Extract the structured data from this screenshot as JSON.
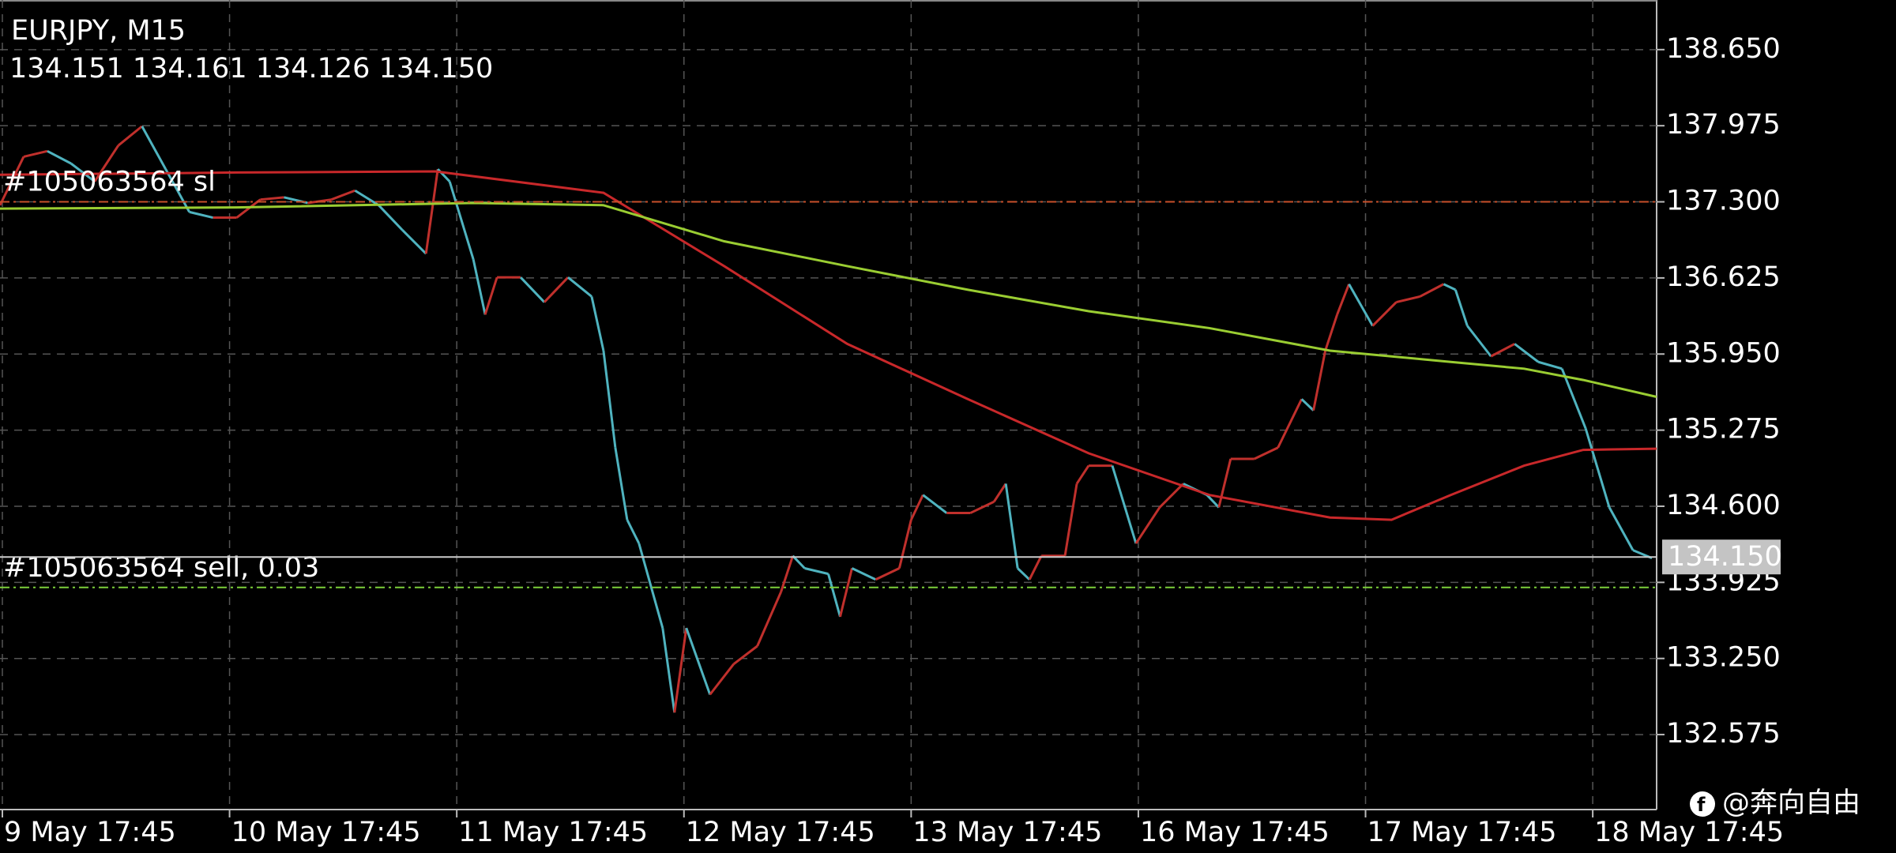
{
  "chart_data": {
    "type": "line",
    "title": "EURJPY, M15",
    "ohlc": "134.151 134.161 134.126 134.150",
    "watermark": "@奔向自由",
    "up_color": "#c0302c",
    "down_color": "#4fb3bf",
    "grid": true,
    "xlim": [
      0,
      700
    ],
    "xticks": [
      {
        "value": 1,
        "label": "9 May 17:45"
      },
      {
        "value": 97,
        "label": "10 May 17:45"
      },
      {
        "value": 193,
        "label": "11 May 17:45"
      },
      {
        "value": 289,
        "label": "12 May 17:45"
      },
      {
        "value": 385,
        "label": "13 May 17:45"
      },
      {
        "value": 481,
        "label": "16 May 17:45"
      },
      {
        "value": 577,
        "label": "17 May 17:45"
      },
      {
        "value": 673,
        "label": "18 May 17:45"
      }
    ],
    "ylim": [
      131.91,
      139.09
    ],
    "yticks": [
      {
        "value": 138.65,
        "label": "138.650"
      },
      {
        "value": 137.975,
        "label": "137.975"
      },
      {
        "value": 137.3,
        "label": "137.300"
      },
      {
        "value": 136.625,
        "label": "136.625"
      },
      {
        "value": 135.95,
        "label": "135.950"
      },
      {
        "value": 135.275,
        "label": "135.275"
      },
      {
        "value": 134.6,
        "label": "134.600"
      },
      {
        "value": 133.925,
        "label": "133.925"
      },
      {
        "value": 133.25,
        "label": "133.250"
      },
      {
        "value": 132.575,
        "label": "132.575"
      }
    ],
    "price": {
      "x": [
        0,
        10,
        20,
        30,
        40,
        50,
        60,
        70,
        80,
        90,
        100,
        110,
        120,
        130,
        140,
        150,
        160,
        170,
        180,
        185,
        190,
        200,
        205,
        210,
        220,
        230,
        240,
        250,
        255,
        260,
        265,
        270,
        280,
        285,
        290,
        300,
        310,
        320,
        330,
        335,
        340,
        350,
        355,
        360,
        370,
        380,
        385,
        390,
        400,
        410,
        420,
        425,
        430,
        435,
        440,
        450,
        455,
        460,
        470,
        480,
        490,
        500,
        510,
        515,
        520,
        530,
        540,
        550,
        555,
        560,
        565,
        570,
        580,
        590,
        600,
        610,
        615,
        620,
        630,
        640,
        650,
        660,
        670,
        680,
        690,
        698
      ],
      "values": [
        137.27,
        137.7,
        137.75,
        137.64,
        137.48,
        137.8,
        137.97,
        137.59,
        137.21,
        137.16,
        137.16,
        137.32,
        137.34,
        137.29,
        137.32,
        137.4,
        137.27,
        137.05,
        136.84,
        137.59,
        137.48,
        136.79,
        136.3,
        136.63,
        136.63,
        136.41,
        136.63,
        136.46,
        135.98,
        135.12,
        134.48,
        134.27,
        133.52,
        132.77,
        133.52,
        132.93,
        133.2,
        133.36,
        133.84,
        134.16,
        134.05,
        134.0,
        133.62,
        134.05,
        133.95,
        134.05,
        134.48,
        134.7,
        134.54,
        134.54,
        134.64,
        134.8,
        134.05,
        133.95,
        134.16,
        134.16,
        134.8,
        134.96,
        134.96,
        134.27,
        134.59,
        134.8,
        134.7,
        134.59,
        135.02,
        135.02,
        135.12,
        135.55,
        135.45,
        135.98,
        136.3,
        136.57,
        136.2,
        136.41,
        136.46,
        136.57,
        136.52,
        136.2,
        135.93,
        136.04,
        135.88,
        135.82,
        135.29,
        134.59,
        134.21,
        134.14
      ]
    },
    "series": [
      {
        "color": "#c8282a",
        "x": [
          0,
          100,
          184,
          255,
          306,
          358,
          409,
          460,
          511,
          562,
          588,
          613,
          644,
          669,
          700
        ],
        "values": [
          137.54,
          137.56,
          137.57,
          137.38,
          136.73,
          136.04,
          135.55,
          135.07,
          134.7,
          134.5,
          134.48,
          134.7,
          134.96,
          135.1,
          135.11
        ]
      },
      {
        "color": "#9acd32",
        "x": [
          0,
          100,
          200,
          255,
          306,
          358,
          409,
          460,
          511,
          562,
          613,
          644,
          669,
          700
        ],
        "values": [
          137.24,
          137.25,
          137.29,
          137.27,
          136.95,
          136.73,
          136.52,
          136.33,
          136.18,
          135.98,
          135.88,
          135.82,
          135.72,
          135.57
        ]
      }
    ],
    "levels": [
      {
        "label": "#105063564 sl",
        "value": 137.3,
        "color": "#c8502a"
      },
      {
        "label": "#105063564 sell, 0.03",
        "value": 133.88,
        "color": "#7ccf3a"
      }
    ],
    "current": {
      "value": 134.15,
      "label": "134.150"
    }
  }
}
